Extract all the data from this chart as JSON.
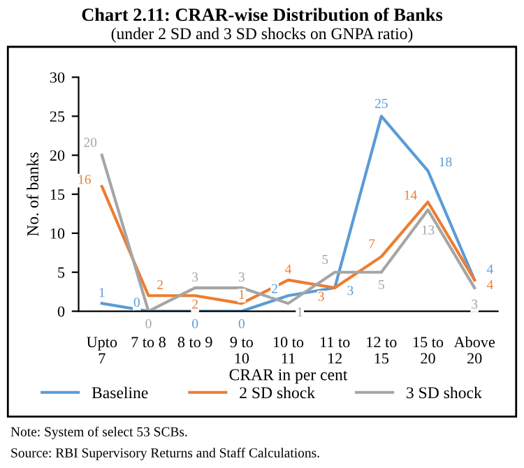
{
  "chart_data": {
    "type": "line",
    "title": "Chart 2.11: CRAR-wise Distribution of Banks",
    "subtitle": "(under 2 SD and 3 SD shocks on GNPA ratio)",
    "xlabel": "CRAR in per cent",
    "ylabel": "No. of banks",
    "categories": [
      "Upto\n7",
      "7 to 8",
      "8 to 9",
      "9 to\n10",
      "10 to\n11",
      "11 to\n12",
      "12 to\n15",
      "15 to\n20",
      "Above\n20"
    ],
    "series": [
      {
        "name": "Baseline",
        "color": "#5b9bd5",
        "values": [
          1,
          0,
          0,
          0,
          2,
          3,
          25,
          18,
          4
        ]
      },
      {
        "name": "2 SD shock",
        "color": "#ed7d31",
        "values": [
          16,
          2,
          2,
          1,
          4,
          3,
          7,
          14,
          4
        ]
      },
      {
        "name": "3 SD shock",
        "color": "#a5a5a5",
        "values": [
          20,
          0,
          3,
          3,
          1,
          5,
          5,
          13,
          3
        ]
      }
    ],
    "ylim": [
      0,
      30
    ],
    "yticks": [
      0,
      5,
      10,
      15,
      20,
      25,
      30
    ],
    "data_labels": true,
    "grid": false,
    "legend": "bottom",
    "marker": "none",
    "line_style": "solid",
    "annotations": [
      "Note: System of select 53 SCBs.",
      "Source: RBI Supervisory Returns and Staff Calculations."
    ]
  }
}
